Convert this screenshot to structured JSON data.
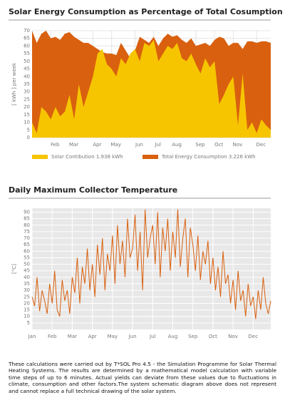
{
  "chart_data": [
    {
      "type": "area",
      "title": "Solar Energy Consumption as Percentage of Total Cosumption",
      "y_label": "[ kWh ] per week",
      "categories": [
        null,
        null,
        null,
        null,
        "Feb",
        null,
        null,
        null,
        "Mar",
        null,
        null,
        null,
        null,
        "Apr",
        null,
        null,
        null,
        "May",
        null,
        null,
        null,
        null,
        "Jun",
        null,
        null,
        null,
        "Jul",
        null,
        null,
        null,
        "Aug",
        null,
        null,
        null,
        null,
        "Sep",
        null,
        null,
        null,
        "Oct",
        null,
        null,
        null,
        "Nov",
        null,
        null,
        null,
        null,
        "Dec",
        null,
        null,
        null
      ],
      "series": [
        {
          "name": "Total Energy Consumption 3.226 kWh",
          "color": "#d9600f",
          "values": [
            70,
            62,
            68,
            70,
            65,
            66,
            64,
            68,
            69,
            66,
            64,
            62,
            62,
            60,
            58,
            56,
            55,
            55,
            54,
            62,
            57,
            52,
            57,
            66,
            64,
            62,
            66,
            60,
            65,
            68,
            66,
            67,
            64,
            62,
            65,
            60,
            61,
            62,
            60,
            64,
            66,
            65,
            60,
            62,
            62,
            58,
            63,
            63,
            62,
            63,
            63,
            62
          ]
        },
        {
          "name": "Solar Contibution 1.938 kWh",
          "color": "#f6c500",
          "values": [
            10,
            3,
            20,
            17,
            12,
            20,
            14,
            17,
            28,
            12,
            35,
            20,
            30,
            40,
            55,
            58,
            48,
            45,
            40,
            52,
            48,
            55,
            58,
            50,
            62,
            60,
            64,
            50,
            55,
            60,
            58,
            62,
            52,
            50,
            55,
            48,
            42,
            52,
            46,
            50,
            22,
            28,
            35,
            40,
            8,
            42,
            5,
            10,
            3,
            12,
            8,
            5
          ]
        }
      ],
      "ylim": [
        0,
        70
      ],
      "yticks": [
        0,
        5,
        10,
        15,
        20,
        25,
        30,
        35,
        40,
        45,
        50,
        55,
        60,
        65,
        70
      ],
      "grid": true
    },
    {
      "type": "line",
      "title": "Daily Maximum Collector Temperature",
      "y_label": "[°C]",
      "categories": [
        "Jan",
        null,
        null,
        null,
        null,
        null,
        null,
        null,
        "Feb",
        null,
        null,
        null,
        null,
        null,
        null,
        null,
        "Mar",
        null,
        null,
        null,
        null,
        null,
        null,
        null,
        "Apr",
        null,
        null,
        null,
        null,
        null,
        null,
        null,
        "May",
        null,
        null,
        null,
        null,
        null,
        null,
        null,
        "Jun",
        null,
        null,
        null,
        null,
        null,
        null,
        null,
        "Jul",
        null,
        null,
        null,
        null,
        null,
        null,
        null,
        "Aug",
        null,
        null,
        null,
        null,
        null,
        null,
        null,
        "Sep",
        null,
        null,
        null,
        null,
        null,
        null,
        null,
        "Oct",
        null,
        null,
        null,
        null,
        null,
        null,
        null,
        "Nov",
        null,
        null,
        null,
        null,
        null,
        null,
        null,
        "Dec",
        null,
        null,
        null,
        null,
        null,
        null,
        null
      ],
      "series": [
        {
          "name": "Temperature",
          "color": "#d9600f",
          "values": [
            25,
            18,
            40,
            14,
            30,
            22,
            12,
            35,
            20,
            45,
            15,
            10,
            38,
            22,
            30,
            12,
            40,
            28,
            55,
            20,
            48,
            35,
            62,
            30,
            50,
            25,
            65,
            42,
            70,
            30,
            58,
            45,
            72,
            35,
            80,
            50,
            68,
            40,
            85,
            55,
            62,
            88,
            45,
            75,
            30,
            92,
            55,
            70,
            80,
            50,
            90,
            40,
            78,
            60,
            85,
            45,
            75,
            55,
            92,
            48,
            70,
            85,
            40,
            78,
            65,
            45,
            72,
            38,
            60,
            50,
            68,
            35,
            55,
            30,
            48,
            25,
            60,
            35,
            42,
            20,
            38,
            15,
            45,
            22,
            30,
            10,
            35,
            18,
            25,
            8,
            30,
            15,
            40,
            20,
            12,
            22
          ]
        }
      ],
      "ylim": [
        0,
        93
      ],
      "yticks": [
        5,
        10,
        15,
        20,
        25,
        30,
        35,
        40,
        45,
        50,
        55,
        60,
        65,
        70,
        75,
        80,
        85,
        90
      ],
      "grid": true
    }
  ],
  "footer_text": "These calculations were carried out by T*SOL Pro 4.5 - the Simulation Programme for Solar Thermal Heating Systems. The results are determined by a mathematical model calculation with variable time steps of up to 6 minutes. Actual yields can deviate from these values due to fluctuations in climate, consumption and other factors.The system schematic diagram above does not represent and cannot replace a full technical drawing of the solar system."
}
